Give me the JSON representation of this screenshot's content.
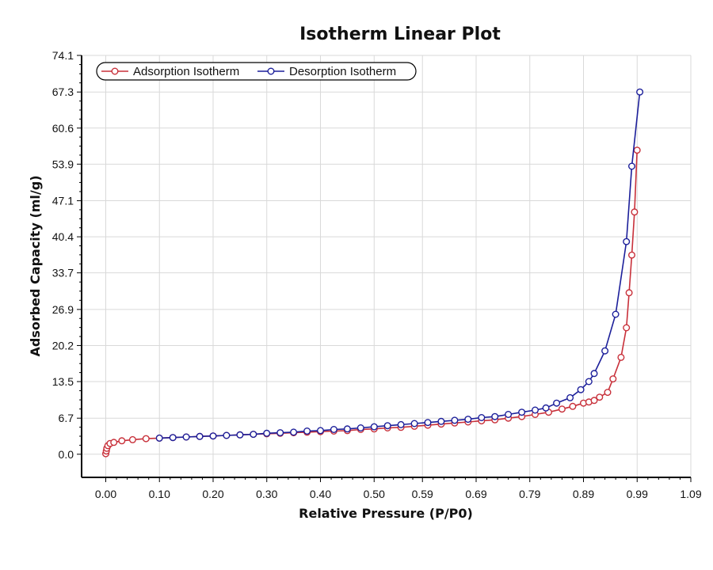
{
  "chart_data": {
    "type": "line",
    "title": "Isotherm Linear Plot",
    "xlabel": "Relative Pressure (P/P0)",
    "ylabel": "Adsorbed Capacity (ml/g)",
    "xlim": [
      -0.045,
      1.09
    ],
    "ylim": [
      -4.3,
      74.1
    ],
    "xticks": [
      "0.00",
      "0.10",
      "0.20",
      "0.30",
      "0.40",
      "0.50",
      "0.59",
      "0.69",
      "0.79",
      "0.89",
      "0.99",
      "1.09"
    ],
    "yticks": [
      "74.1",
      "67.3",
      "60.6",
      "53.9",
      "47.1",
      "40.4",
      "33.7",
      "26.9",
      "20.2",
      "13.5",
      "6.7",
      "0.0"
    ],
    "grid": true,
    "legend": "top-left",
    "colors": {
      "adsorption": "#c8303a",
      "desorption": "#1c1f9a",
      "grid": "#d9d9d9",
      "axis": "#000000"
    },
    "series": [
      {
        "name": "Adsorption Isotherm",
        "x": [
          0.0,
          0.001,
          0.002,
          0.004,
          0.008,
          0.015,
          0.03,
          0.05,
          0.075,
          0.1,
          0.125,
          0.15,
          0.175,
          0.2,
          0.225,
          0.25,
          0.275,
          0.3,
          0.325,
          0.35,
          0.375,
          0.4,
          0.425,
          0.45,
          0.475,
          0.5,
          0.525,
          0.55,
          0.575,
          0.6,
          0.625,
          0.65,
          0.675,
          0.7,
          0.725,
          0.75,
          0.775,
          0.8,
          0.825,
          0.85,
          0.87,
          0.89,
          0.9,
          0.91,
          0.92,
          0.935,
          0.945,
          0.96,
          0.97,
          0.975,
          0.98,
          0.985,
          0.99
        ],
        "y": [
          0.1,
          0.6,
          1.1,
          1.6,
          2.0,
          2.2,
          2.5,
          2.7,
          2.9,
          3.0,
          3.1,
          3.2,
          3.3,
          3.4,
          3.5,
          3.6,
          3.7,
          3.8,
          3.9,
          4.0,
          4.1,
          4.2,
          4.3,
          4.4,
          4.6,
          4.7,
          4.9,
          5.0,
          5.2,
          5.4,
          5.6,
          5.8,
          6.0,
          6.2,
          6.4,
          6.7,
          7.0,
          7.4,
          7.8,
          8.4,
          8.9,
          9.5,
          9.7,
          10.0,
          10.6,
          11.5,
          14.0,
          18.0,
          23.5,
          30.0,
          37.0,
          45.0,
          56.5
        ]
      },
      {
        "name": "Desorption Isotherm",
        "x": [
          0.995,
          0.98,
          0.97,
          0.95,
          0.93,
          0.91,
          0.9,
          0.885,
          0.865,
          0.84,
          0.82,
          0.8,
          0.775,
          0.75,
          0.725,
          0.7,
          0.675,
          0.65,
          0.625,
          0.6,
          0.575,
          0.55,
          0.525,
          0.5,
          0.475,
          0.45,
          0.425,
          0.4,
          0.375,
          0.35,
          0.325,
          0.3,
          0.275,
          0.25,
          0.225,
          0.2,
          0.175,
          0.15,
          0.125,
          0.1
        ],
        "y": [
          67.3,
          53.5,
          39.5,
          26.0,
          19.2,
          15.0,
          13.5,
          12.0,
          10.5,
          9.5,
          8.6,
          8.2,
          7.8,
          7.4,
          7.0,
          6.8,
          6.5,
          6.3,
          6.1,
          5.9,
          5.7,
          5.5,
          5.3,
          5.1,
          4.9,
          4.7,
          4.6,
          4.4,
          4.3,
          4.1,
          4.0,
          3.9,
          3.7,
          3.6,
          3.5,
          3.4,
          3.3,
          3.2,
          3.1,
          3.0
        ]
      }
    ]
  }
}
